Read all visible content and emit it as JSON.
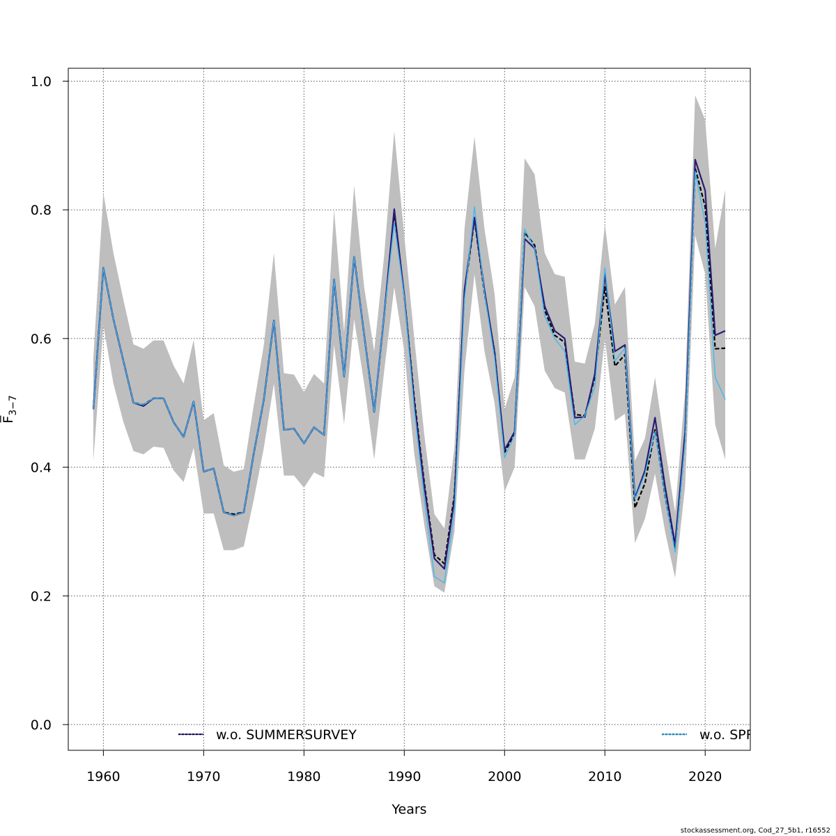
{
  "chart_data": {
    "type": "line",
    "xlabel": "Years",
    "ylabel": "F̅",
    "ylabel_subscript": "3−7",
    "xlim": [
      1956.5,
      2024.5
    ],
    "ylim": [
      -0.04,
      1.02
    ],
    "x_ticks": [
      1960,
      1970,
      1980,
      1990,
      2000,
      2010,
      2020
    ],
    "y_ticks": [
      0.0,
      0.2,
      0.4,
      0.6,
      0.8,
      1.0
    ],
    "y_tick_labels": [
      "0.0",
      "0.2",
      "0.4",
      "0.6",
      "0.8",
      "1.0"
    ],
    "grid": true,
    "legend": [
      "w.o. SUMMERSURVEY",
      "w.o. SPRINGSURVEY"
    ],
    "legend_placement": "bottom",
    "x": [
      1959,
      1960,
      1961,
      1962,
      1963,
      1964,
      1965,
      1966,
      1967,
      1968,
      1969,
      1970,
      1971,
      1972,
      1973,
      1974,
      1975,
      1976,
      1977,
      1978,
      1979,
      1980,
      1981,
      1982,
      1983,
      1984,
      1985,
      1986,
      1987,
      1988,
      1989,
      1990,
      1991,
      1992,
      1993,
      1994,
      1995,
      1996,
      1997,
      1998,
      1999,
      2000,
      2001,
      2002,
      2003,
      2004,
      2005,
      2006,
      2007,
      2008,
      2009,
      2010,
      2011,
      2012,
      2013,
      2014,
      2015,
      2016,
      2017,
      2018,
      2019,
      2020,
      2021,
      2022
    ],
    "band": {
      "lower": [
        0.41,
        0.62,
        0.53,
        0.47,
        0.425,
        0.42,
        0.432,
        0.43,
        0.395,
        0.377,
        0.43,
        0.328,
        0.328,
        0.271,
        0.271,
        0.277,
        0.35,
        0.43,
        0.53,
        0.387,
        0.387,
        0.368,
        0.392,
        0.384,
        0.59,
        0.467,
        0.63,
        0.53,
        0.412,
        0.55,
        0.68,
        0.58,
        0.42,
        0.31,
        0.215,
        0.205,
        0.3,
        0.55,
        0.7,
        0.58,
        0.5,
        0.362,
        0.4,
        0.68,
        0.65,
        0.55,
        0.523,
        0.516,
        0.412,
        0.412,
        0.46,
        0.6,
        0.472,
        0.483,
        0.282,
        0.32,
        0.39,
        0.3,
        0.228,
        0.37,
        0.76,
        0.7,
        0.466,
        0.412
      ],
      "upper": [
        0.57,
        0.826,
        0.733,
        0.66,
        0.591,
        0.584,
        0.597,
        0.597,
        0.558,
        0.53,
        0.598,
        0.473,
        0.484,
        0.403,
        0.393,
        0.397,
        0.497,
        0.59,
        0.733,
        0.546,
        0.544,
        0.517,
        0.545,
        0.53,
        0.8,
        0.61,
        0.838,
        0.68,
        0.58,
        0.73,
        0.922,
        0.76,
        0.6,
        0.45,
        0.327,
        0.305,
        0.43,
        0.77,
        0.914,
        0.77,
        0.67,
        0.49,
        0.54,
        0.88,
        0.855,
        0.733,
        0.7,
        0.696,
        0.564,
        0.561,
        0.623,
        0.778,
        0.653,
        0.68,
        0.41,
        0.445,
        0.54,
        0.43,
        0.33,
        0.52,
        0.978,
        0.94,
        0.74,
        0.831
      ]
    },
    "series": [
      {
        "name": "",
        "color": "#000000",
        "dash": "6,3",
        "width": 2.2,
        "values": [
          0.49,
          0.71,
          0.63,
          0.565,
          0.5,
          0.497,
          0.507,
          0.507,
          0.47,
          0.447,
          0.502,
          0.393,
          0.398,
          0.33,
          0.327,
          0.33,
          0.422,
          0.505,
          0.628,
          0.458,
          0.46,
          0.437,
          0.462,
          0.45,
          0.692,
          0.541,
          0.727,
          0.606,
          0.486,
          0.637,
          0.795,
          0.667,
          0.506,
          0.375,
          0.264,
          0.25,
          0.357,
          0.67,
          0.785,
          0.67,
          0.58,
          0.423,
          0.452,
          0.765,
          0.745,
          0.644,
          0.605,
          0.594,
          0.482,
          0.48,
          0.54,
          0.68,
          0.557,
          0.575,
          0.337,
          0.375,
          0.458,
          0.355,
          0.272,
          0.445,
          0.865,
          0.805,
          0.584,
          0.585
        ]
      },
      {
        "name": "w.o. SUMMERSURVEY",
        "color": "#2a1b72",
        "dash": "",
        "width": 2.2,
        "values": [
          0.49,
          0.71,
          0.63,
          0.565,
          0.5,
          0.495,
          0.507,
          0.507,
          0.47,
          0.447,
          0.502,
          0.393,
          0.398,
          0.33,
          0.325,
          0.33,
          0.422,
          0.505,
          0.628,
          0.458,
          0.46,
          0.437,
          0.462,
          0.45,
          0.692,
          0.541,
          0.727,
          0.606,
          0.486,
          0.637,
          0.801,
          0.667,
          0.5,
          0.37,
          0.258,
          0.242,
          0.35,
          0.675,
          0.788,
          0.675,
          0.578,
          0.427,
          0.455,
          0.755,
          0.74,
          0.65,
          0.612,
          0.6,
          0.477,
          0.478,
          0.545,
          0.7,
          0.58,
          0.59,
          0.352,
          0.395,
          0.477,
          0.37,
          0.28,
          0.455,
          0.878,
          0.83,
          0.605,
          0.612
        ]
      },
      {
        "name": "w.o. SPRINGSURVEY",
        "color": "#40b8f0",
        "dash": "",
        "width": 1.4,
        "values": [
          0.49,
          0.71,
          0.63,
          0.565,
          0.5,
          0.497,
          0.507,
          0.507,
          0.47,
          0.447,
          0.502,
          0.393,
          0.398,
          0.33,
          0.325,
          0.33,
          0.422,
          0.505,
          0.628,
          0.458,
          0.46,
          0.437,
          0.462,
          0.45,
          0.692,
          0.541,
          0.727,
          0.606,
          0.486,
          0.637,
          0.78,
          0.665,
          0.49,
          0.35,
          0.23,
          0.22,
          0.33,
          0.66,
          0.805,
          0.67,
          0.57,
          0.415,
          0.45,
          0.77,
          0.74,
          0.635,
          0.6,
          0.58,
          0.466,
          0.48,
          0.525,
          0.71,
          0.565,
          0.585,
          0.35,
          0.39,
          0.455,
          0.355,
          0.268,
          0.44,
          0.86,
          0.78,
          0.54,
          0.505
        ]
      }
    ],
    "legend_line_styles": [
      {
        "color": "#2a1b72",
        "dash": "",
        "underlay": "#000000"
      },
      {
        "color": "#40b8f0",
        "dash": "",
        "underlay": "#000000"
      }
    ]
  },
  "footer": "stockassessment.org, Cod_27_5b1, r16552"
}
